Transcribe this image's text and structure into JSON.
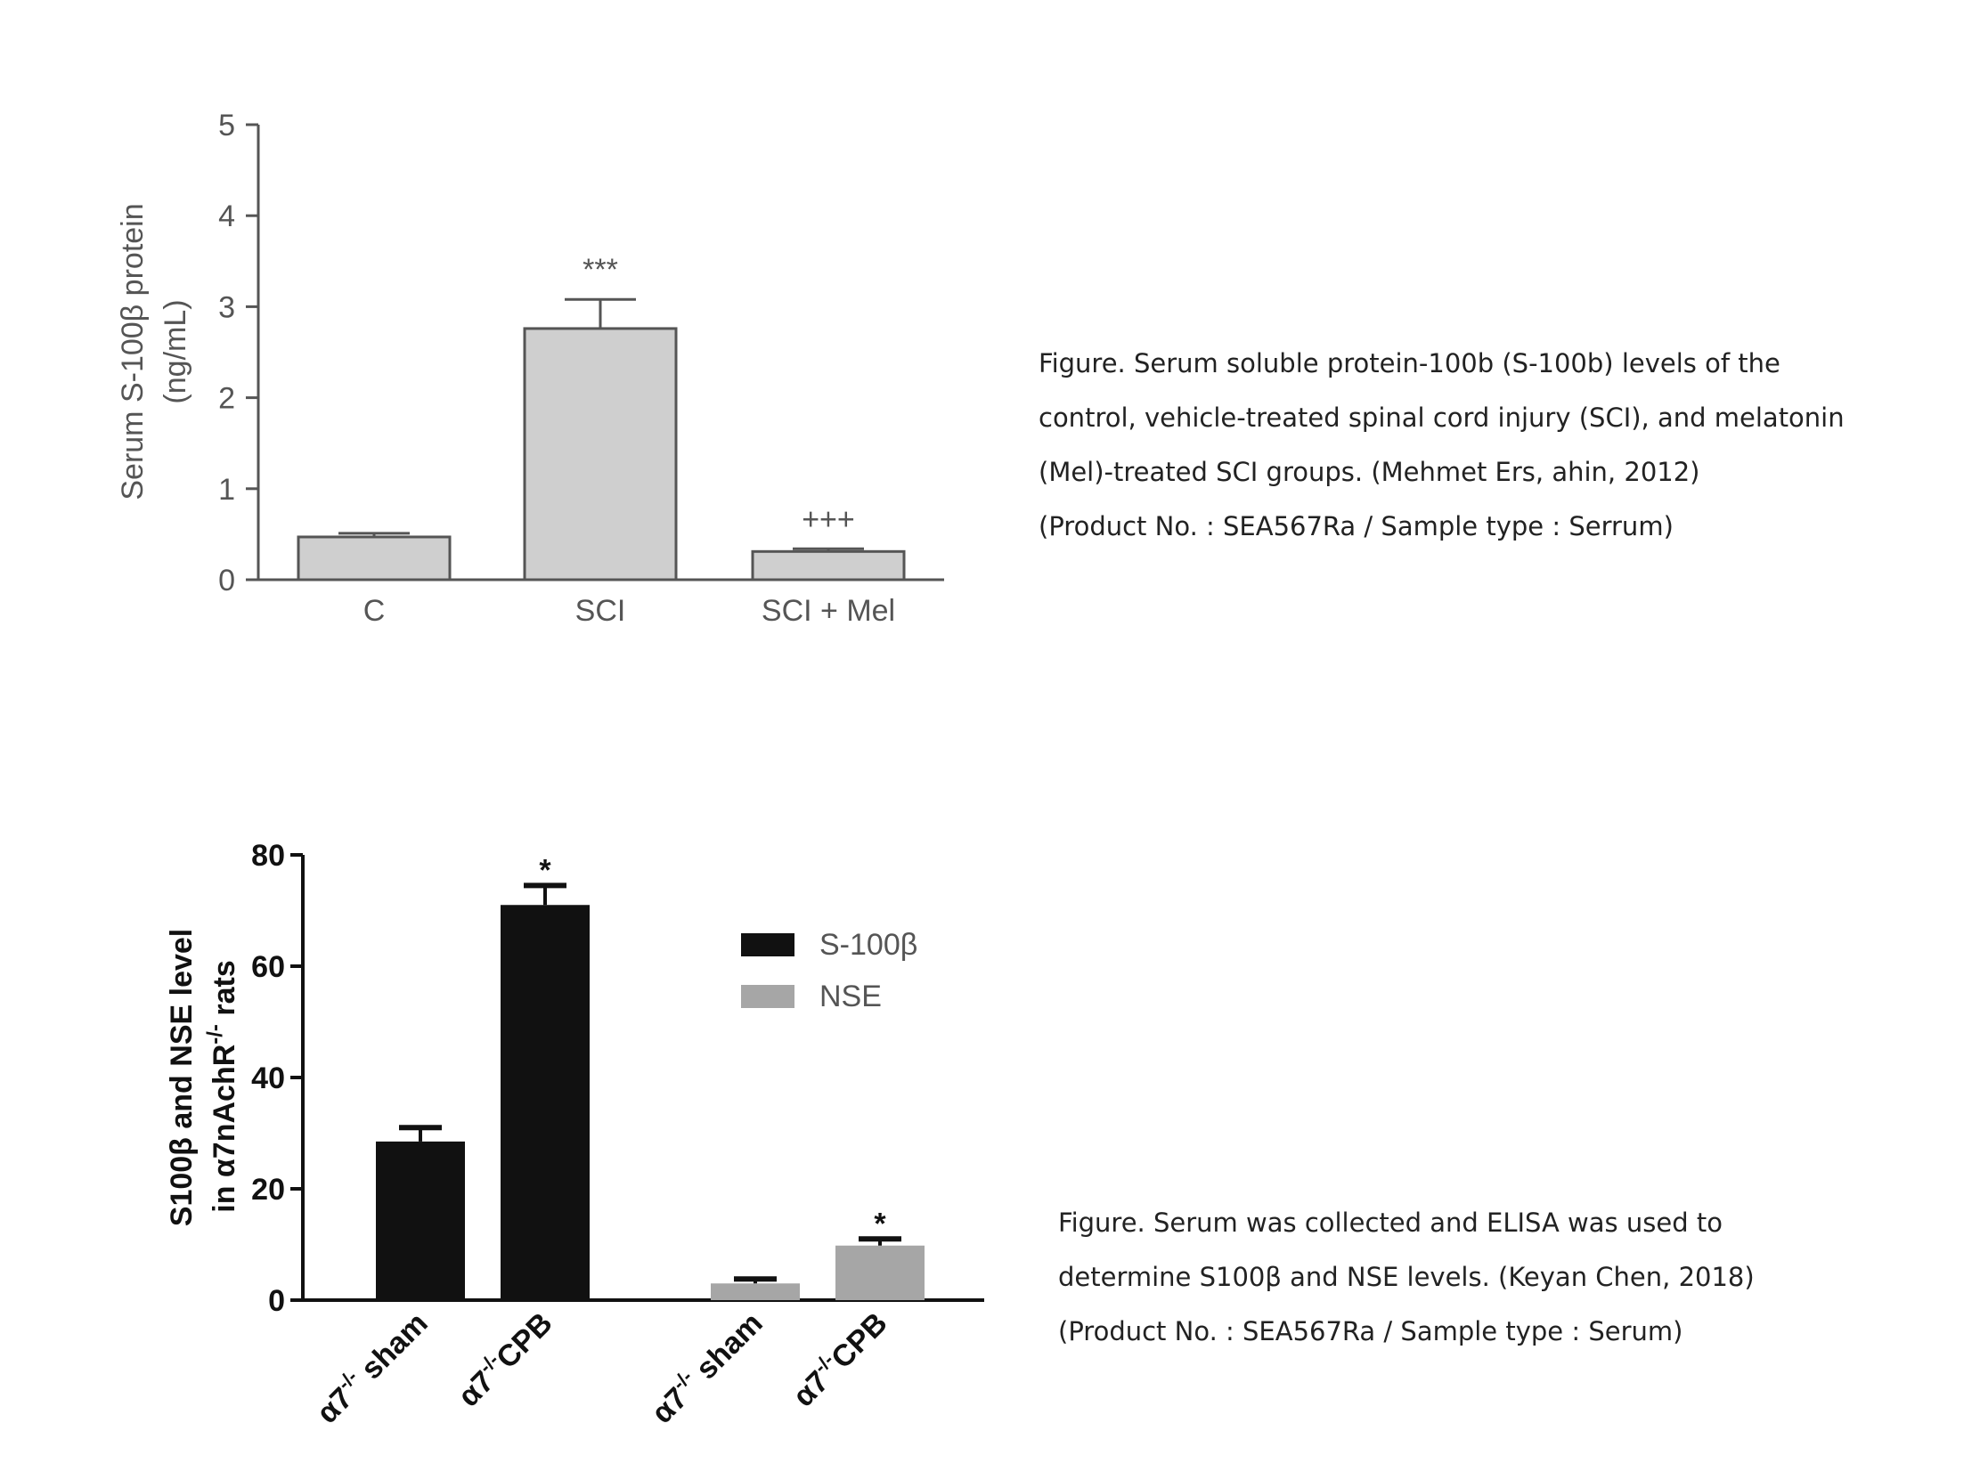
{
  "captions": [
    {
      "lines": [
        "Figure. Serum soluble protein-100b (S-100b) levels of the",
        "control, vehicle-treated spinal cord injury (SCI), and melatonin",
        "(Mel)-treated SCI groups. (Mehmet Ers, ahin, 2012)",
        "(Product No. : SEA567Ra / Sample type : Serrum)"
      ]
    },
    {
      "lines": [
        "Figure. Serum was collected and ELISA was used to",
        "determine S100β and NSE levels. (Keyan Chen, 2018)",
        "(Product No. : SEA567Ra / Sample type : Serum)"
      ]
    }
  ],
  "chart_data": [
    {
      "type": "bar",
      "categories": [
        "C",
        "SCI",
        "SCI + Mel"
      ],
      "values": [
        0.47,
        2.76,
        0.31
      ],
      "errors": [
        0.04,
        0.32,
        0.03
      ],
      "annotations": [
        "",
        "***",
        "+++"
      ],
      "ylabel": "Serum S-100β protein\n(ng/mL)",
      "ylabel_lines": [
        "Serum S-100β protein",
        "(ng/mL)"
      ],
      "yticks": [
        0,
        1,
        2,
        3,
        4,
        5
      ],
      "ylim": [
        0,
        5
      ],
      "grid": false,
      "colors": {
        "bar": "#cfcfcf",
        "bar_edge": "#555555",
        "axis": "#555555"
      }
    },
    {
      "type": "bar",
      "groups": [
        {
          "categories": [
            "α7-/- sham",
            "α7-/- CPB"
          ],
          "series": "S-100β",
          "values": [
            28.5,
            71
          ],
          "errors": [
            2.5,
            3.5
          ],
          "annotations": [
            "",
            "*"
          ]
        },
        {
          "categories": [
            "α7-/- sham",
            "α7-/- CPB"
          ],
          "series": "NSE",
          "values": [
            3,
            9.8
          ],
          "errors": [
            0.8,
            1.2
          ],
          "annotations": [
            "",
            "*"
          ]
        }
      ],
      "tick_label_parts": [
        {
          "base": "α7",
          "sup": "-/-",
          "rest": " sham"
        },
        {
          "base": "α7",
          "sup": "-/-",
          "rest": "CPB"
        },
        {
          "base": "α7",
          "sup": "-/-",
          "rest": " sham"
        },
        {
          "base": "α7",
          "sup": "-/-",
          "rest": "CPB"
        }
      ],
      "legend": [
        {
          "name": "S-100β",
          "color": "#111111"
        },
        {
          "name": "NSE",
          "color": "#a6a6a6"
        }
      ],
      "legend_position": "top-right",
      "ylabel_lines": [
        "S100β and NSE level",
        "in α7nAchR",
        "-/-",
        " rats"
      ],
      "yticks": [
        0,
        20,
        40,
        60,
        80
      ],
      "ylim": [
        0,
        80
      ],
      "grid": false,
      "colors": {
        "axis": "#111111"
      }
    }
  ]
}
